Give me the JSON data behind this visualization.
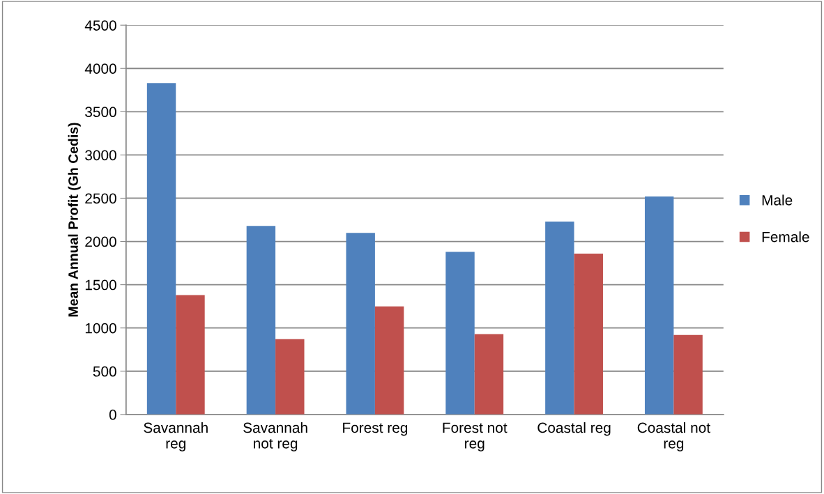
{
  "chart_data": {
    "type": "bar",
    "ylabel": "Mean Annual Profit (Gh Cedis)",
    "categories": [
      "Savannah reg",
      "Savannah not reg",
      "Forest reg",
      "Forest not reg",
      "Coastal reg",
      "Coastal not reg"
    ],
    "series": [
      {
        "name": "Male",
        "color": "#4f81bd",
        "values": [
          3830,
          2180,
          2100,
          1880,
          2230,
          2520
        ]
      },
      {
        "name": "Female",
        "color": "#c0504d",
        "values": [
          1380,
          870,
          1250,
          930,
          1860,
          920
        ]
      }
    ],
    "ylim": [
      0,
      4500
    ],
    "yticks": [
      0,
      500,
      1000,
      1500,
      2000,
      2500,
      3000,
      3500,
      4000,
      4500
    ],
    "grid": "y",
    "legend": "right"
  }
}
